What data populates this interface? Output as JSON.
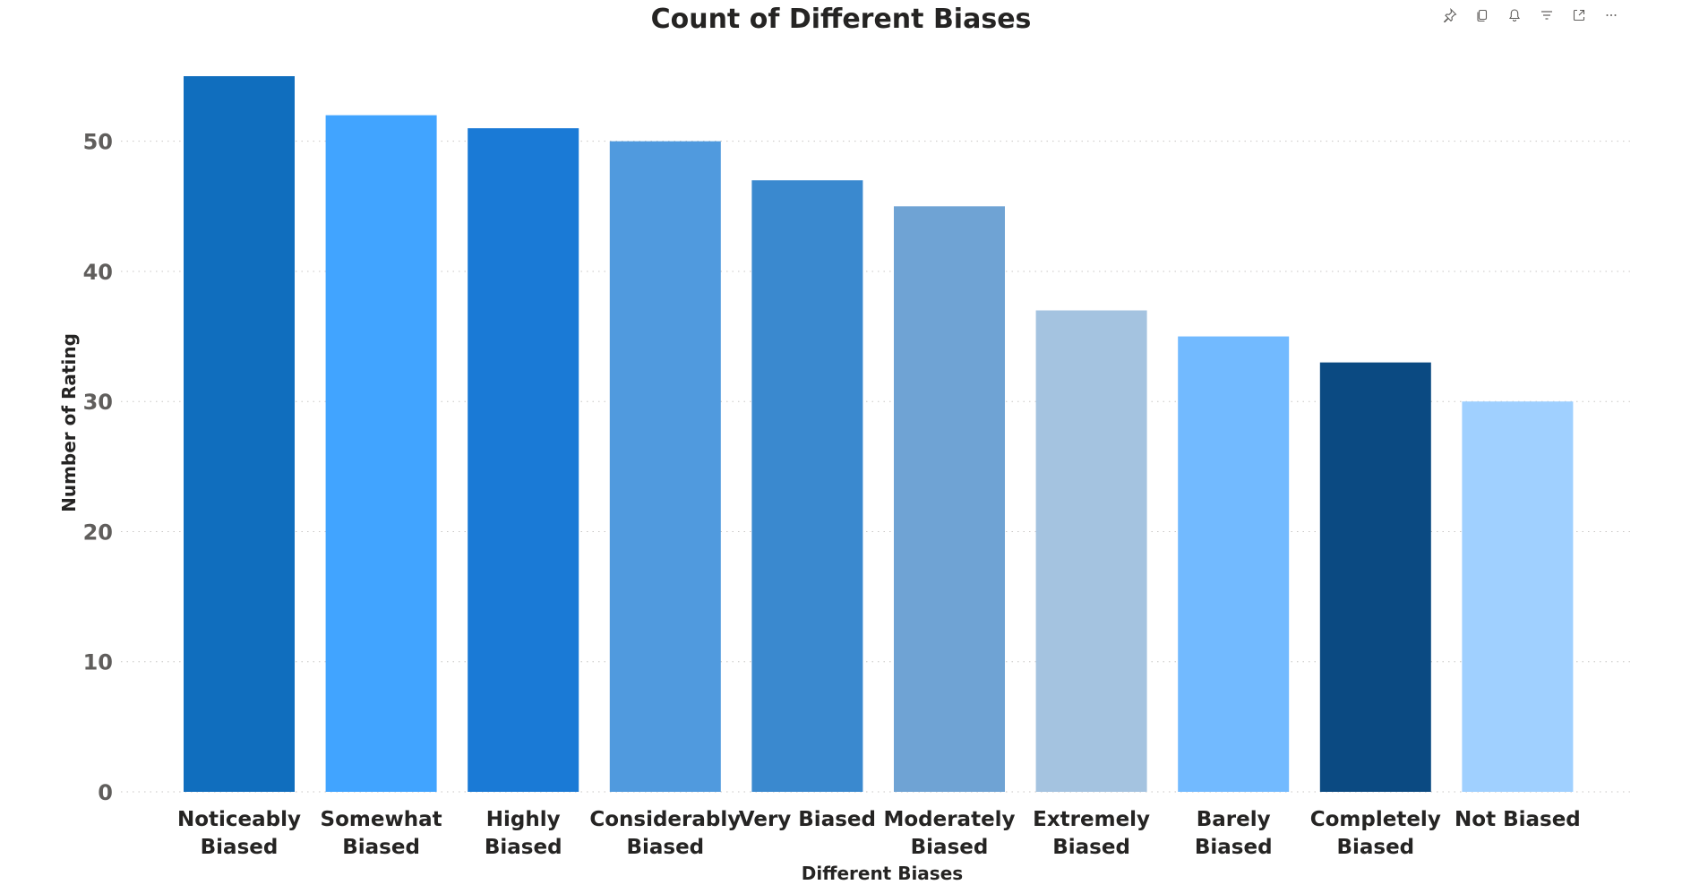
{
  "toolbar": {
    "icons": [
      "pin-icon",
      "copy-icon",
      "bell-icon",
      "filter-icon",
      "focus-mode-icon",
      "more-options-icon"
    ],
    "icon_color": "#605e5c"
  },
  "chart_data": {
    "type": "bar",
    "title": "Count of Different Biases",
    "xlabel": "Different Biases",
    "ylabel": "Number of Rating",
    "categories": [
      [
        "Noticeably",
        "Biased"
      ],
      [
        "Somewhat",
        "Biased"
      ],
      [
        "Highly",
        "Biased"
      ],
      [
        "Considerably",
        "Biased"
      ],
      [
        "Very Biased"
      ],
      [
        "Moderately",
        "Biased"
      ],
      [
        "Extremely",
        "Biased"
      ],
      [
        "Barely",
        "Biased"
      ],
      [
        "Completely",
        "Biased"
      ],
      [
        "Not Biased"
      ]
    ],
    "values": [
      55,
      52,
      51,
      50,
      47,
      45,
      37,
      35,
      33,
      30
    ],
    "colors": [
      "#106ebe",
      "#41a4ff",
      "#1a7ad6",
      "#509ade",
      "#3a89cf",
      "#6fa3d4",
      "#a4c3e0",
      "#72baff",
      "#0b4a82",
      "#a0d0ff"
    ],
    "ylim": [
      0,
      57
    ],
    "yticks": [
      0,
      10,
      20,
      30,
      40,
      50
    ],
    "grid": true,
    "legend": "none"
  }
}
